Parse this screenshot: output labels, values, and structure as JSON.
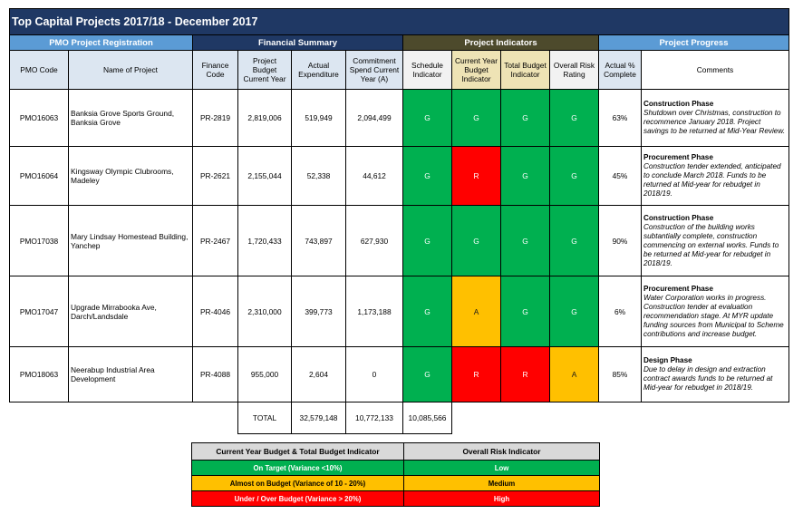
{
  "title": "Top Capital Projects 2017/18 - December 2017",
  "groups": {
    "registration": "PMO Project Registration",
    "financial": "Financial Summary",
    "indicators": "Project Indicators",
    "progress": "Project Progress"
  },
  "headers": {
    "pmo_code": "PMO Code",
    "project_name": "Name of Project",
    "finance_code": "Finance Code",
    "budget": "Project Budget Current Year",
    "actual": "Actual Expenditure",
    "commitment": "Commitment Spend Current Year (A)",
    "schedule": "Schedule Indicator",
    "cy_budget": "Current Year Budget Indicator",
    "total_budget": "Total Budget Indicator",
    "risk": "Overall Risk Rating",
    "pct": "Actual % Complete",
    "comments": "Comments"
  },
  "projects": [
    {
      "pmo_code": "PMO16063",
      "name": "Banksia Grove Sports Ground, Banksia Grove",
      "finance_code": "PR-2819",
      "budget": "2,819,006",
      "actual": "519,949",
      "commitment": "2,094,499",
      "schedule": "G",
      "cy_budget": "G",
      "total_budget": "G",
      "risk": "G",
      "pct": "63%",
      "phase": "Construction Phase",
      "note": "Shutdown over Christmas, construction to recommence January 2018. Project savings to be returned at Mid-Year Review."
    },
    {
      "pmo_code": "PMO16064",
      "name": "Kingsway Olympic Clubrooms, Madeley",
      "finance_code": "PR-2621",
      "budget": "2,155,044",
      "actual": "52,338",
      "commitment": "44,612",
      "schedule": "G",
      "cy_budget": "R",
      "total_budget": "G",
      "risk": "G",
      "pct": "45%",
      "phase": "Procurement Phase",
      "note": "Construction tender extended, anticipated to conclude March 2018. Funds to be returned at Mid-year for rebudget in 2018/19."
    },
    {
      "pmo_code": "PMO17038",
      "name": "Mary Lindsay Homestead Building, Yanchep",
      "finance_code": "PR-2467",
      "budget": "1,720,433",
      "actual": "743,897",
      "commitment": "627,930",
      "schedule": "G",
      "cy_budget": "G",
      "total_budget": "G",
      "risk": "G",
      "pct": "90%",
      "phase": "Construction Phase",
      "note": "Construction of the building works subtantially complete, construction commencing on external works. Funds to be returned at Mid-year for rebudget in 2018/19."
    },
    {
      "pmo_code": "PMO17047",
      "name": "Upgrade Mirrabooka Ave, Darch/Landsdale",
      "finance_code": "PR-4046",
      "budget": "2,310,000",
      "actual": "399,773",
      "commitment": "1,173,188",
      "schedule": "G",
      "cy_budget": "A",
      "total_budget": "G",
      "risk": "G",
      "pct": "6%",
      "phase": "Procurement Phase",
      "note": "Water Corporation works in progress. Construction tender at evaluation recommendation stage. At MYR update funding sources from Municipal to Scheme contributions and increase budget."
    },
    {
      "pmo_code": "PMO18063",
      "name": "Neerabup Industrial Area Development",
      "finance_code": "PR-4088",
      "budget": "955,000",
      "actual": "2,604",
      "commitment": "0",
      "schedule": "G",
      "cy_budget": "R",
      "total_budget": "R",
      "risk": "A",
      "pct": "85%",
      "phase": "Design Phase",
      "note": "Due to delay in design and extraction contract awards funds to be returned at Mid-year for rebudget in 2018/19."
    }
  ],
  "totals": {
    "label": "TOTAL",
    "budget": "32,579,148",
    "actual": "10,772,133",
    "commitment": "10,085,566"
  },
  "legend": {
    "col1_header": "Current Year Budget & Total Budget Indicator",
    "col2_header": "Overall Risk Indicator",
    "rows": [
      {
        "budget": "On Target (Variance <10%)",
        "risk": "Low"
      },
      {
        "budget": "Almost on Budget (Variance of 10 - 20%)",
        "risk": "Medium"
      },
      {
        "budget": "Under / Over Budget (Variance > 20%)",
        "risk": "High"
      }
    ]
  },
  "colors": {
    "green": "#00b050",
    "amber": "#ffc000",
    "red": "#ff0000",
    "navy": "#1f3864",
    "blue": "#5b9bd5"
  }
}
